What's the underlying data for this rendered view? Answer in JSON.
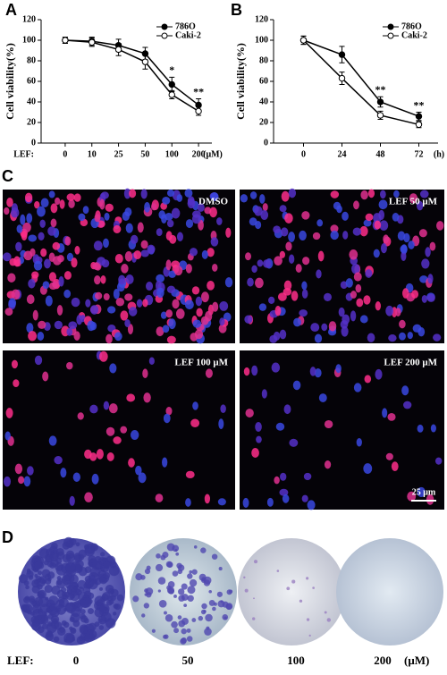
{
  "panel_labels": [
    "A",
    "B",
    "C",
    "D"
  ],
  "chart_data": [
    {
      "type": "line",
      "ylabel": "Cell viability(%)",
      "xlabel_prefix": "LEF:",
      "xlabel_unit": "(μM)",
      "categories": [
        "0",
        "10",
        "25",
        "50",
        "100",
        "200"
      ],
      "ylim": [
        0,
        120
      ],
      "yticks": [
        0,
        20,
        40,
        60,
        80,
        100,
        120
      ],
      "legend": "upper right",
      "series": [
        {
          "name": "786O",
          "color": "#000000",
          "marker": "filled",
          "values": [
            100,
            99,
            95,
            87,
            57,
            37
          ],
          "errors": [
            3,
            4,
            6,
            6,
            7,
            6
          ]
        },
        {
          "name": "Caki-2",
          "color": "#000000",
          "marker": "open",
          "values": [
            100,
            98,
            91,
            79,
            47,
            31
          ],
          "errors": [
            3,
            4,
            6,
            7,
            4,
            4
          ]
        }
      ],
      "annotations": [
        {
          "text": "*",
          "x": "100"
        },
        {
          "text": "**",
          "x": "200"
        }
      ]
    },
    {
      "type": "line",
      "ylabel": "Cell viability(%)",
      "xlabel_unit": "(h)",
      "categories": [
        "0",
        "24",
        "48",
        "72"
      ],
      "ylim": [
        0,
        120
      ],
      "yticks": [
        0,
        20,
        40,
        60,
        80,
        100,
        120
      ],
      "legend": "upper right",
      "series": [
        {
          "name": "786O",
          "color": "#000000",
          "marker": "filled",
          "values": [
            100,
            86,
            40,
            26
          ],
          "errors": [
            4,
            8,
            5,
            4
          ]
        },
        {
          "name": "Caki-2",
          "color": "#000000",
          "marker": "open",
          "values": [
            100,
            63,
            27,
            18
          ],
          "errors": [
            4,
            6,
            4,
            3
          ]
        }
      ],
      "annotations": [
        {
          "text": "**",
          "x": "48"
        },
        {
          "text": "**",
          "x": "72"
        }
      ]
    }
  ],
  "microscopy": {
    "panels": [
      {
        "label": "DMSO"
      },
      {
        "label": "LEF 50 μM"
      },
      {
        "label": "LEF 100 μM"
      },
      {
        "label": "LEF 200 μM"
      }
    ],
    "scale_bar": "25 μm"
  },
  "colony": {
    "prefix": "LEF:",
    "doses": [
      "0",
      "50",
      "100",
      "200"
    ],
    "unit": "(μM)"
  }
}
